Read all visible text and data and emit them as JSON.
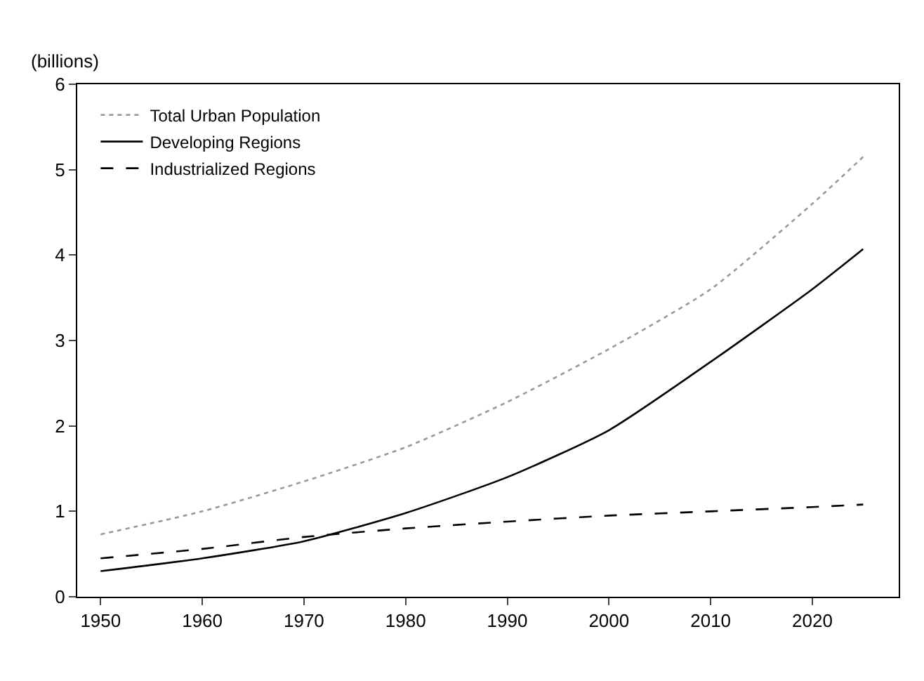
{
  "chart_data": {
    "type": "line",
    "ylabel": "(billions)",
    "x": [
      1950,
      1960,
      1970,
      1980,
      1990,
      2000,
      2010,
      2020,
      2025
    ],
    "series": [
      {
        "name": "Total Urban Population",
        "color": "#999999",
        "line_style": "dotted",
        "values": [
          0.73,
          1.0,
          1.35,
          1.75,
          2.28,
          2.9,
          3.6,
          4.6,
          5.15
        ]
      },
      {
        "name": "Developing Regions",
        "color": "#000000",
        "line_style": "solid",
        "values": [
          0.3,
          0.45,
          0.65,
          0.98,
          1.4,
          1.95,
          2.75,
          3.6,
          4.07
        ]
      },
      {
        "name": "Industrialized Regions",
        "color": "#000000",
        "line_style": "dashed",
        "values": [
          0.45,
          0.56,
          0.7,
          0.8,
          0.88,
          0.95,
          1.0,
          1.05,
          1.08
        ]
      }
    ],
    "xlim": [
      1947.7,
      2028.5
    ],
    "xticks": [
      1950,
      1960,
      1970,
      1980,
      1990,
      2000,
      2010,
      2020
    ],
    "ylim": [
      0,
      6
    ],
    "yticks": [
      0,
      1,
      2,
      3,
      4,
      5,
      6
    ],
    "legend": "top left",
    "marker": "none"
  }
}
